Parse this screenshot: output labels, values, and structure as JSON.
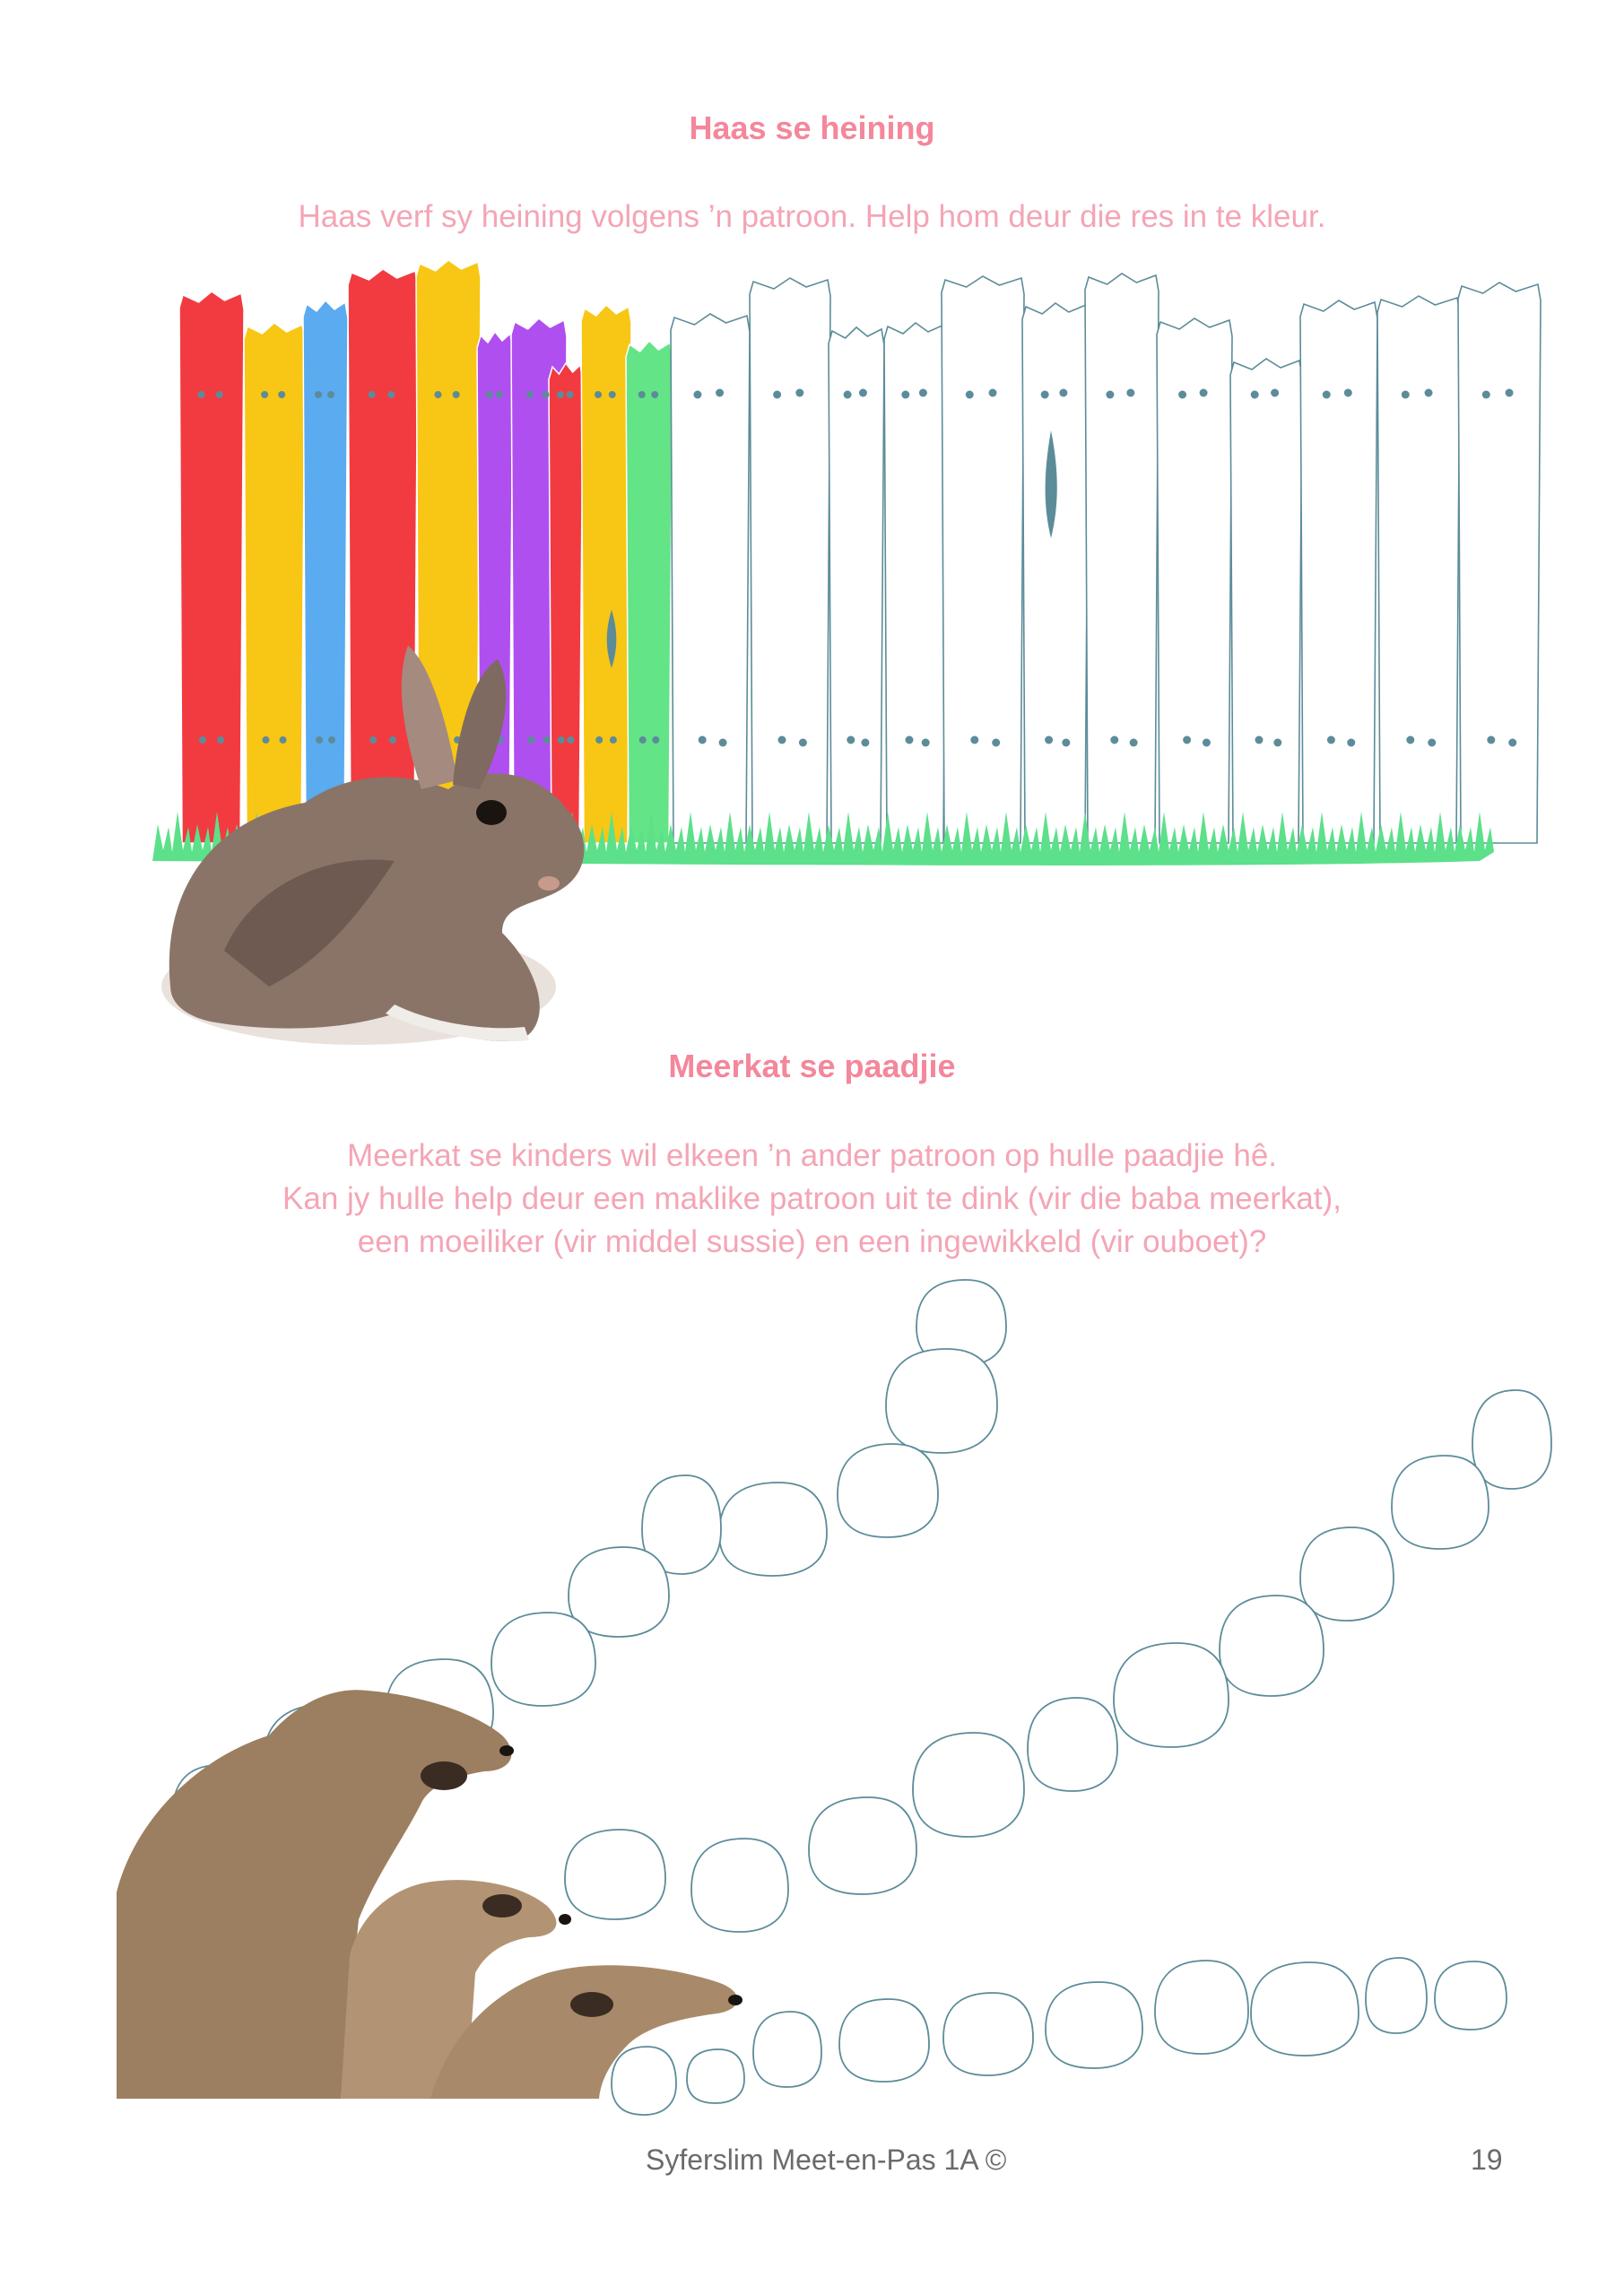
{
  "colors": {
    "heading_pink": "#f4879b",
    "text_pink": "#f4a5b5",
    "outline_blue": "#5c8c99",
    "grass_green": "#5ce08a",
    "paint_red": "#f13b41",
    "paint_yellow": "#f8c614",
    "paint_blue": "#5aabf0",
    "paint_purple": "#b04ff0",
    "paint_green": "#63e486"
  },
  "section1": {
    "title": "Haas se heining",
    "instruction": "Haas verf sy heining volgens ’n patroon. Help hom deur die res in te kleur.",
    "image": "rabbit-photo"
  },
  "section2": {
    "title": "Meerkat se paadjie",
    "instruction_lines": [
      "Meerkat se kinders wil elkeen ’n ander patroon op hulle paadjie hê.",
      "Kan jy hulle help deur een maklike patroon uit te dink (vir die baba meerkat),",
      "een moeiliker (vir middel sussie) en een ingewikkeld (vir ouboet)?"
    ],
    "image": "meerkats-photo"
  },
  "footer": {
    "text": "Syferslim Meet-en-Pas 1A ©",
    "page_number": "19"
  }
}
